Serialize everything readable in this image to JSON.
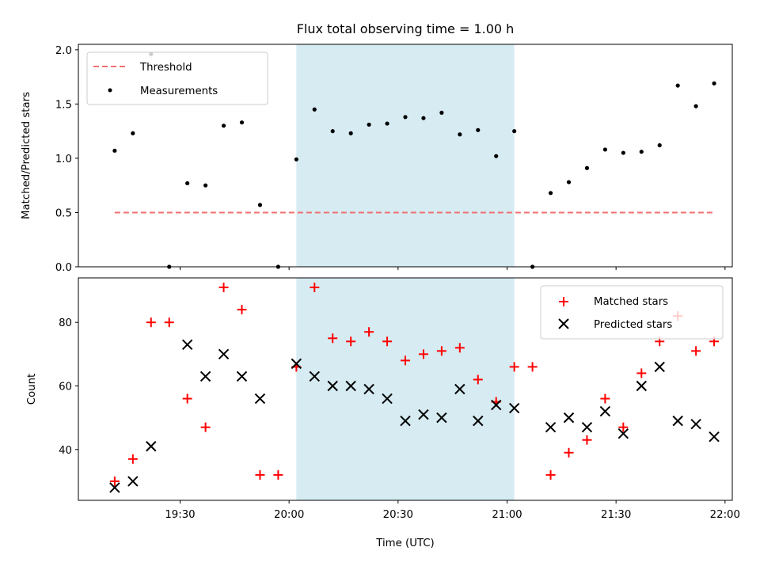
{
  "chart_data": [
    {
      "type": "scatter",
      "title": "Flux total observing time = 1.00 h",
      "ylabel": "Matched/Predicted stars",
      "ylim": [
        0,
        2.05
      ],
      "yticks": [
        0.0,
        0.5,
        1.0,
        1.5,
        2.0
      ],
      "ytick_labels": [
        "0.0",
        "0.5",
        "1.0",
        "1.5",
        "2.0"
      ],
      "legend": {
        "placement": "top-left",
        "entries": [
          "Threshold",
          "Measurements"
        ]
      },
      "series": [
        {
          "name": "Measurements",
          "marker": "dot",
          "color": "#000000",
          "x": [
            "19:12",
            "19:17",
            "19:22",
            "19:27",
            "19:32",
            "19:37",
            "19:42",
            "19:47",
            "19:52",
            "19:57",
            "20:02",
            "20:07",
            "20:12",
            "20:17",
            "20:22",
            "20:27",
            "20:32",
            "20:37",
            "20:42",
            "20:47",
            "20:52",
            "20:57",
            "21:02",
            "21:07",
            "21:12",
            "21:17",
            "21:22",
            "21:27",
            "21:32",
            "21:37",
            "21:42",
            "21:47",
            "21:52",
            "21:57"
          ],
          "y": [
            1.07,
            1.23,
            1.96,
            0.0,
            0.77,
            0.75,
            1.3,
            1.33,
            0.57,
            0.0,
            0.99,
            1.45,
            1.25,
            1.23,
            1.31,
            1.32,
            1.38,
            1.37,
            1.42,
            1.22,
            1.26,
            1.02,
            1.25,
            0.0,
            0.68,
            0.78,
            0.91,
            1.08,
            1.05,
            1.06,
            1.12,
            1.67,
            1.48,
            1.69
          ]
        },
        {
          "name": "Threshold",
          "style": "dashed-line",
          "color": "#f07070",
          "x": [
            "19:12",
            "21:57"
          ],
          "y": [
            0.5,
            0.5
          ]
        }
      ],
      "highlight_span": {
        "from": "20:02",
        "to": "21:02",
        "color": "#add8e6"
      }
    },
    {
      "type": "scatter",
      "ylabel": "Count",
      "xlabel": "Time (UTC)",
      "ylim": [
        24,
        94
      ],
      "yticks": [
        40,
        60,
        80
      ],
      "ytick_labels": [
        "40",
        "60",
        "80"
      ],
      "xlim": [
        "19:02",
        "22:02"
      ],
      "xticks": [
        "19:30",
        "20:00",
        "20:30",
        "21:00",
        "21:30",
        "22:00"
      ],
      "legend": {
        "placement": "top-right",
        "entries": [
          "Matched stars",
          "Predicted stars"
        ]
      },
      "series": [
        {
          "name": "Matched stars",
          "marker": "plus",
          "color": "#ff0000",
          "x": [
            "19:12",
            "19:17",
            "19:22",
            "19:27",
            "19:32",
            "19:37",
            "19:42",
            "19:47",
            "19:52",
            "19:57",
            "20:02",
            "20:07",
            "20:12",
            "20:17",
            "20:22",
            "20:27",
            "20:32",
            "20:37",
            "20:42",
            "20:47",
            "20:52",
            "20:57",
            "21:02",
            "21:07",
            "21:12",
            "21:17",
            "21:22",
            "21:27",
            "21:32",
            "21:37",
            "21:42",
            "21:47",
            "21:52",
            "21:57"
          ],
          "y": [
            30,
            37,
            80,
            80,
            56,
            47,
            91,
            84,
            32,
            32,
            66,
            91,
            75,
            74,
            77,
            74,
            68,
            70,
            71,
            72,
            62,
            55,
            66,
            66,
            32,
            39,
            43,
            56,
            47,
            64,
            74,
            82,
            71,
            74
          ]
        },
        {
          "name": "Predicted stars",
          "marker": "x",
          "color": "#000000",
          "x": [
            "19:12",
            "19:17",
            "19:22",
            "19:32",
            "19:37",
            "19:42",
            "19:47",
            "19:52",
            "20:02",
            "20:07",
            "20:12",
            "20:17",
            "20:22",
            "20:27",
            "20:32",
            "20:37",
            "20:42",
            "20:47",
            "20:52",
            "20:57",
            "21:02",
            "21:12",
            "21:17",
            "21:22",
            "21:27",
            "21:32",
            "21:37",
            "21:42",
            "21:47",
            "21:52",
            "21:57"
          ],
          "y": [
            28,
            30,
            41,
            73,
            63,
            70,
            63,
            56,
            67,
            63,
            60,
            60,
            59,
            56,
            49,
            51,
            50,
            59,
            49,
            54,
            53,
            47,
            50,
            47,
            52,
            45,
            60,
            66,
            49,
            48,
            44
          ]
        }
      ],
      "highlight_span": {
        "from": "20:02",
        "to": "21:02",
        "color": "#add8e6"
      }
    }
  ]
}
